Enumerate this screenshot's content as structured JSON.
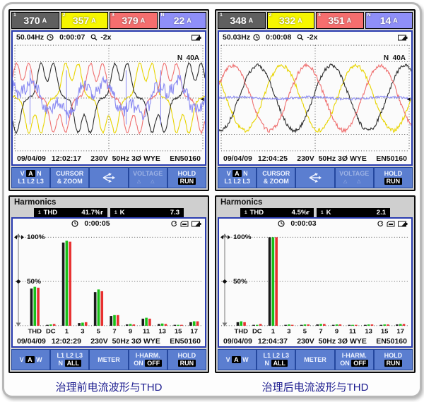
{
  "colors": {
    "phase1_gray": "#5f5f5f",
    "phase2_yellow": "#f6f600",
    "phase3_red": "#f56e6e",
    "neutral_blue": "#8f8ff8",
    "trace_black": "#2e2e2e",
    "trace_yellow": "#e8d400",
    "trace_red": "#ef7070",
    "trace_blue": "#8a8af2",
    "bar_black": "#1a1a1a",
    "bar_green": "#18c018",
    "bar_red": "#e83030",
    "softkey_blue": "#5b7ed0",
    "screen_border": "#2a3cb0",
    "caption_navy": "#1b1b8e"
  },
  "shared": {
    "date": "09/04/09",
    "config": "230V  50Hz 3Ø WYE",
    "standard": "EN50160",
    "zoom": "-2x",
    "scale": "N  40A",
    "trigger_marker": "◄"
  },
  "softkeys_top": {
    "k1_v": "V",
    "k1_a": "A",
    "k1_n": "N",
    "k1_l": "L1 L2 L3",
    "k2_l1": "CURSOR",
    "k2_l2": "& ZOOM",
    "k4": "VOLTAGE",
    "k4_tri": "△ △",
    "k5_l1": "HOLD",
    "k5_l2": "RUN"
  },
  "softkeys_bottom": {
    "k1_v": "V",
    "k1_a": "A",
    "k1_w": "W",
    "k2_l1": "L1 L2 L3",
    "k2_n": "N",
    "k2_all": "ALL",
    "k3": "METER",
    "k4_l1": "I-HARM.",
    "k4_on": "ON",
    "k4_off": "OFF",
    "k5_l1": "HOLD",
    "k5_l2": "RUN"
  },
  "wave_before": {
    "readings": [
      {
        "ch": "1",
        "value": "370",
        "unit": "A",
        "bg": "#5f5f5f"
      },
      {
        "ch": "2",
        "value": "357",
        "unit": "A",
        "bg": "#f6f600"
      },
      {
        "ch": "3",
        "value": "379",
        "unit": "A",
        "bg": "#f56e6e"
      },
      {
        "ch": "N",
        "value": "22",
        "unit": "A",
        "bg": "#8f8ff8"
      }
    ],
    "freq": "50.04Hz",
    "timer": "0:00:07",
    "time": "12:02:17"
  },
  "wave_after": {
    "readings": [
      {
        "ch": "1",
        "value": "348",
        "unit": "A",
        "bg": "#5f5f5f"
      },
      {
        "ch": "2",
        "value": "332",
        "unit": "A",
        "bg": "#f6f600"
      },
      {
        "ch": "3",
        "value": "351",
        "unit": "A",
        "bg": "#f56e6e"
      },
      {
        "ch": "N",
        "value": "14",
        "unit": "A",
        "bg": "#8f8ff8"
      }
    ],
    "freq": "50.03Hz",
    "timer": "0:00:08",
    "time": "12:04:25"
  },
  "harm_before": {
    "title": "Harmonics",
    "ch": "1",
    "thd_label": "THD",
    "thd_value": "41.7%r",
    "k_label": "K",
    "k_value": "7.3",
    "timer": "0:00:05",
    "time": "12:02:29"
  },
  "harm_after": {
    "title": "Harmonics",
    "ch": "1",
    "thd_label": "THD",
    "thd_value": "4.5%r",
    "k_label": "K",
    "k_value": "2.1",
    "timer": "0:00:03",
    "time": "12:04:37"
  },
  "captions": {
    "before": "治理前电流波形与THD",
    "after": "治理后电流波形与THD"
  },
  "chart_data": [
    {
      "id": "wave-before",
      "type": "line",
      "title": "Phase currents before mitigation",
      "cycles": 2.6,
      "amp": 0.58,
      "ylabel": "N  40A",
      "series": [
        {
          "name": "L2",
          "color": "#e8d400",
          "phase_deg": -198,
          "harmonics": [
            [
              1,
              1,
              0
            ],
            [
              5,
              0.3,
              180
            ],
            [
              7,
              0.1,
              0
            ]
          ],
          "noise": 0.02
        },
        {
          "name": "L1",
          "color": "#2e2e2e",
          "phase_deg": -78,
          "harmonics": [
            [
              1,
              1,
              0
            ],
            [
              5,
              0.3,
              180
            ],
            [
              7,
              0.1,
              0
            ]
          ],
          "noise": 0.02
        },
        {
          "name": "L3",
          "color": "#ef7070",
          "phase_deg": -318,
          "harmonics": [
            [
              1,
              1,
              0
            ],
            [
              5,
              0.3,
              180
            ],
            [
              7,
              0.1,
              0
            ]
          ],
          "noise": 0.02
        },
        {
          "name": "N",
          "color": "#8a8af2",
          "phase_deg": 40,
          "harmonics": [
            [
              1,
              0.45,
              0
            ],
            [
              3,
              0.27,
              30
            ],
            [
              9,
              0.08,
              0
            ]
          ],
          "noise": 0.11,
          "spikes": [
            0.09,
            0.28,
            0.59,
            0.77
          ]
        }
      ]
    },
    {
      "id": "wave-after",
      "type": "line",
      "title": "Phase currents after mitigation",
      "cycles": 2.6,
      "amp": 0.66,
      "ylabel": "N  40A",
      "series": [
        {
          "name": "L2",
          "color": "#e8d400",
          "phase_deg": -216,
          "harmonics": [
            [
              1,
              1,
              0
            ]
          ],
          "noise": 0.035
        },
        {
          "name": "L1",
          "color": "#2e2e2e",
          "phase_deg": -96,
          "harmonics": [
            [
              1,
              1,
              0
            ]
          ],
          "noise": 0.035
        },
        {
          "name": "L3",
          "color": "#ef7070",
          "phase_deg": 24,
          "harmonics": [
            [
              1,
              1,
              0
            ]
          ],
          "noise": 0.035
        },
        {
          "name": "N",
          "color": "#8a8af2",
          "phase_deg": 0,
          "harmonics": [
            [
              1,
              0.03,
              0
            ]
          ],
          "noise": 0.02
        }
      ]
    },
    {
      "id": "harm-before",
      "type": "bar",
      "title": "Current harmonic spectrum before mitigation (THD 41.7%)",
      "categories": [
        "THD",
        "DC",
        "1",
        "3",
        "5",
        "7",
        "9",
        "11",
        "13",
        "15",
        "17"
      ],
      "ylim": [
        0,
        110
      ],
      "gridlines": [
        50,
        100
      ],
      "series": [
        {
          "name": "L1",
          "color": "#1a1a1a",
          "values": [
            42,
            1,
            94,
            3,
            38,
            11,
            1.5,
            8,
            2,
            1,
            4
          ]
        },
        {
          "name": "L2",
          "color": "#18c018",
          "values": [
            44,
            1.5,
            96,
            3.5,
            41,
            12,
            2,
            9,
            2.5,
            1,
            5
          ]
        },
        {
          "name": "L3",
          "color": "#e83030",
          "values": [
            43,
            2,
            95,
            4,
            39,
            12,
            1.5,
            8,
            2,
            1,
            5
          ]
        }
      ]
    },
    {
      "id": "harm-after",
      "type": "bar",
      "title": "Current harmonic spectrum after mitigation (THD 4.5%)",
      "categories": [
        "THD",
        "DC",
        "1",
        "3",
        "5",
        "7",
        "9",
        "11",
        "13",
        "15",
        "17"
      ],
      "ylim": [
        0,
        110
      ],
      "gridlines": [
        50,
        100
      ],
      "series": [
        {
          "name": "L1",
          "color": "#1a1a1a",
          "values": [
            4,
            1,
            100,
            1,
            1,
            1.5,
            1,
            1,
            1,
            1,
            1.5
          ]
        },
        {
          "name": "L2",
          "color": "#18c018",
          "values": [
            5,
            1,
            100,
            1.5,
            1.5,
            2,
            1.5,
            1,
            1.5,
            1.5,
            2
          ]
        },
        {
          "name": "L3",
          "color": "#e83030",
          "values": [
            4,
            2,
            100,
            1,
            1.5,
            2,
            1.5,
            1,
            1.5,
            1.5,
            2
          ]
        }
      ]
    }
  ]
}
